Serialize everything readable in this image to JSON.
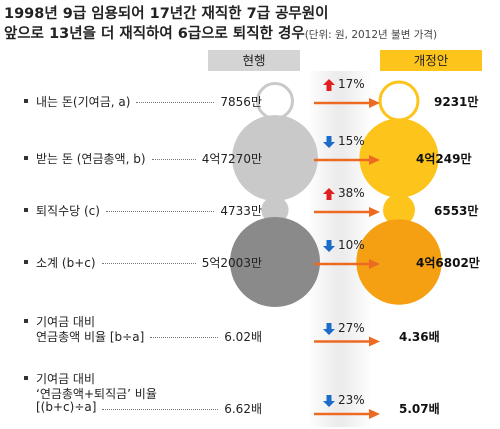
{
  "title_line1": "1998년 9급 임용되어 17년간 재직한 7급 공무원이",
  "title_line2": "앞으로 13년을 더 재직하여 6급으로 퇴직한 경우",
  "unit_note": "(단위: 원, 2012년 불변 가격)",
  "headers": {
    "current": "현행",
    "reform": "개정안"
  },
  "colors": {
    "gray_circle": "#c9c9c9",
    "gray_circle_dark": "#8a8a8a",
    "yellow_circle": "#fdc41c",
    "orange_circle": "#f5a012",
    "arrow": "#ec6a22",
    "up_icon": "#e02020",
    "down_icon": "#1a6cc8",
    "header_gray": "#d4d4d4",
    "header_yellow": "#fdc41c"
  },
  "chart_data": {
    "type": "table",
    "columns": [
      "현행",
      "개정안"
    ],
    "rows": [
      {
        "label": [
          "내는 돈(기여금, a)"
        ],
        "current": "7856만",
        "reform": "9231만",
        "current_value": 7856,
        "reform_value": 9231,
        "unit": "만원",
        "change": "17%",
        "direction": "up",
        "circle": "outline"
      },
      {
        "label": [
          "받는 돈 (연금총액, b)"
        ],
        "current": "4억7270만",
        "reform": "4억249만",
        "current_value": 47270,
        "reform_value": 40249,
        "unit": "만원",
        "change": "15%",
        "direction": "down",
        "circle": "filled"
      },
      {
        "label": [
          "퇴직수당 (c)"
        ],
        "current": "4733만",
        "reform": "6553만",
        "current_value": 4733,
        "reform_value": 6553,
        "unit": "만원",
        "change": "38%",
        "direction": "up",
        "circle": "filled"
      },
      {
        "label": [
          "소계 (b+c)"
        ],
        "current": "5억2003만",
        "reform": "4억6802만",
        "current_value": 52003,
        "reform_value": 46802,
        "unit": "만원",
        "change": "10%",
        "direction": "down",
        "circle": "dark"
      },
      {
        "label": [
          "기여금 대비",
          "연금총액 비율 [b÷a]"
        ],
        "current": "6.02배",
        "reform": "4.36배",
        "current_value": 6.02,
        "reform_value": 4.36,
        "unit": "배",
        "change": "27%",
        "direction": "down",
        "circle": "none"
      },
      {
        "label": [
          "기여금 대비",
          "‘연금총액+퇴직금’ 비율",
          "[(b+c)÷a]"
        ],
        "current": "6.62배",
        "reform": "5.07배",
        "current_value": 6.62,
        "reform_value": 5.07,
        "unit": "배",
        "change": "23%",
        "direction": "down",
        "circle": "none"
      }
    ]
  }
}
